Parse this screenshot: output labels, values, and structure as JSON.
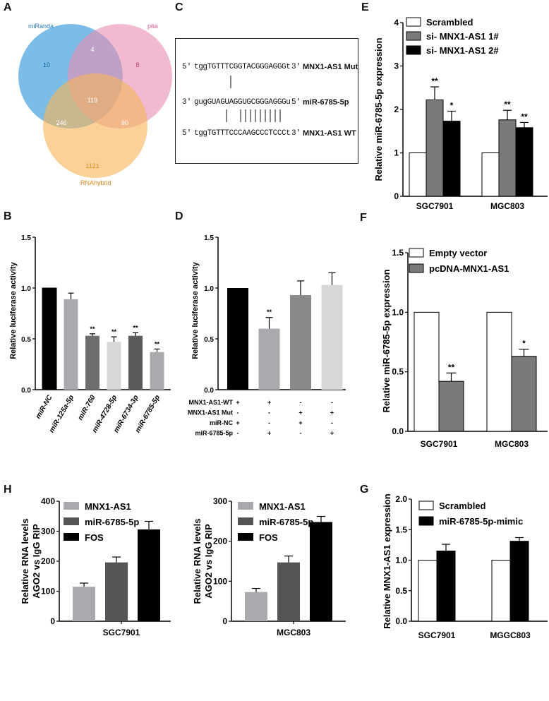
{
  "panels": {
    "A": "A",
    "B": "B",
    "C": "C",
    "D": "D",
    "E": "E",
    "F": "F",
    "G": "G",
    "H": "H"
  },
  "venn": {
    "sets": [
      {
        "name": "miRanda",
        "color": "#4aa3df"
      },
      {
        "name": "pita",
        "color": "#e98fb4"
      },
      {
        "name": "RNAhybrid",
        "color": "#f5b55a"
      }
    ],
    "counts": {
      "a_only": "10",
      "b_only": "8",
      "c_only": "1121",
      "ab": "4",
      "ac": "246",
      "bc": "90",
      "abc": "119"
    }
  },
  "sequences": {
    "mut": {
      "p1": "5'",
      "seq": "tggTGTTTCGGTACGGGAGGGt",
      "p2": "3'",
      "name": "MNX1-AS1 Mut"
    },
    "mir": {
      "p1": "3'",
      "seq": "gugGUAGUAGGUGCGGGAGGGu",
      "p2": "5'",
      "name": "miR-6785-5p"
    },
    "wt": {
      "p1": "5'",
      "seq": "tggTGTTTCCCAAGCCCTCCCt",
      "p2": "3'",
      "name": "MNX1-AS1 WT"
    }
  },
  "chart_data": [
    {
      "id": "B",
      "type": "bar",
      "title": "",
      "ylabel": "Relative luciferase activity",
      "ylim": [
        0,
        1.5
      ],
      "yticks": [
        "0.0",
        "0.5",
        "1.0",
        "1.5"
      ],
      "categories": [
        "miR-NC",
        "miR-125a-5p",
        "miR-760",
        "miR-4728-5p",
        "miR-6734-3p",
        "miR-6785-5p"
      ],
      "values": [
        1.0,
        0.89,
        0.53,
        0.47,
        0.53,
        0.37
      ],
      "errors": [
        0,
        0.06,
        0.02,
        0.05,
        0.03,
        0.03
      ],
      "significance": [
        "",
        "",
        "**",
        "**",
        "**",
        "**"
      ],
      "colors": [
        "#000000",
        "#a9a9ae",
        "#6d6d70",
        "#d7d7da",
        "#5a5a5c",
        "#a9a9ae"
      ]
    },
    {
      "id": "D",
      "type": "bar",
      "title": "",
      "ylabel": "Relative luciferase activity",
      "ylim": [
        0,
        1.5
      ],
      "yticks": [
        "0.0",
        "0.5",
        "1.0",
        "1.5"
      ],
      "values": [
        1.0,
        0.6,
        0.93,
        1.03
      ],
      "errors": [
        0,
        0.11,
        0.14,
        0.12
      ],
      "significance": [
        "",
        "**",
        "",
        ""
      ],
      "colors": [
        "#000000",
        "#a9a9ae",
        "#8a8a8d",
        "#d7d7da"
      ],
      "conditions": [
        {
          "label": "MNX1-AS1-WT",
          "marks": [
            "+",
            "+",
            "-",
            "-"
          ]
        },
        {
          "label": "MNX1-AS1 Mut",
          "marks": [
            "-",
            "-",
            "+",
            "+"
          ]
        },
        {
          "label": "miR-NC",
          "marks": [
            "+",
            "-",
            "+",
            "-"
          ]
        },
        {
          "label": "miR-6785-5p",
          "marks": [
            "-",
            "+",
            "-",
            "+"
          ]
        }
      ]
    },
    {
      "id": "E",
      "type": "bar",
      "title": "",
      "ylabel": "Relative miR-6785-5p expression",
      "ylim": [
        0,
        4
      ],
      "yticks": [
        "0",
        "1",
        "2",
        "3",
        "4"
      ],
      "categories": [
        "SGC7901",
        "MGC803"
      ],
      "series": [
        {
          "name": "Scrambled",
          "color": "#ffffff",
          "values": [
            1.0,
            1.0
          ],
          "errors": [
            0,
            0
          ],
          "sig": [
            "",
            ""
          ]
        },
        {
          "name": "si- MNX1-AS1 1#",
          "color": "#7a7a7a",
          "values": [
            2.22,
            1.76
          ],
          "errors": [
            0.3,
            0.22
          ],
          "sig": [
            "**",
            "**"
          ]
        },
        {
          "name": "si- MNX1-AS1 2#",
          "color": "#000000",
          "values": [
            1.73,
            1.58
          ],
          "errors": [
            0.23,
            0.12
          ],
          "sig": [
            "*",
            "**"
          ]
        }
      ]
    },
    {
      "id": "F",
      "type": "bar",
      "title": "",
      "ylabel": "Relative miR-6785-5p expression",
      "ylim": [
        0,
        1.5
      ],
      "yticks": [
        "0.0",
        "0.5",
        "1.0",
        "1.5"
      ],
      "categories": [
        "SGC7901",
        "MGC803"
      ],
      "series": [
        {
          "name": "Empty vector",
          "color": "#ffffff",
          "values": [
            1.0,
            1.0
          ],
          "errors": [
            0,
            0
          ],
          "sig": [
            "",
            ""
          ]
        },
        {
          "name": "pcDNA-MNX1-AS1",
          "color": "#7a7a7a",
          "values": [
            0.42,
            0.63
          ],
          "errors": [
            0.07,
            0.06
          ],
          "sig": [
            "**",
            "*"
          ]
        }
      ]
    },
    {
      "id": "H1",
      "type": "bar",
      "title": "",
      "ylabel": "Relative RNA levels",
      "ylabel2": "AGO2 vs IgG RIP",
      "ylim": [
        0,
        400
      ],
      "yticks": [
        "0",
        "100",
        "200",
        "300",
        "400"
      ],
      "xlabel": "SGC7901",
      "series_names": [
        "MNX1-AS1",
        "miR-6785-5p",
        "FOS"
      ],
      "values": [
        115,
        196,
        306
      ],
      "errors": [
        12,
        18,
        27
      ],
      "colors": [
        "#a9a9ae",
        "#555558",
        "#000000"
      ]
    },
    {
      "id": "H2",
      "type": "bar",
      "title": "",
      "ylabel": "Relative RNA levels",
      "ylabel2": "AGO2 vs IgG RIP",
      "ylim": [
        0,
        300
      ],
      "yticks": [
        "0",
        "100",
        "200",
        "300"
      ],
      "xlabel": "MGC803",
      "series_names": [
        "MNX1-AS1",
        "miR-6785-5p",
        "FOS"
      ],
      "values": [
        73,
        147,
        248
      ],
      "errors": [
        9,
        16,
        14
      ],
      "colors": [
        "#a9a9ae",
        "#555558",
        "#000000"
      ]
    },
    {
      "id": "G",
      "type": "bar",
      "title": "",
      "ylabel": "Relative MNX1-AS1 expression",
      "ylim": [
        0,
        2
      ],
      "yticks": [
        "0.0",
        "0.5",
        "1.0",
        "1.5",
        "2.0"
      ],
      "categories": [
        "SGC7901",
        "MGGC803"
      ],
      "series": [
        {
          "name": "Scrambled",
          "color": "#ffffff",
          "values": [
            1.0,
            1.0
          ],
          "errors": [
            0,
            0
          ],
          "sig": [
            "",
            ""
          ]
        },
        {
          "name": "miR-6785-5p-mimic",
          "color": "#000000",
          "values": [
            1.15,
            1.31
          ],
          "errors": [
            0.11,
            0.06
          ],
          "sig": [
            "",
            ""
          ]
        }
      ]
    }
  ]
}
